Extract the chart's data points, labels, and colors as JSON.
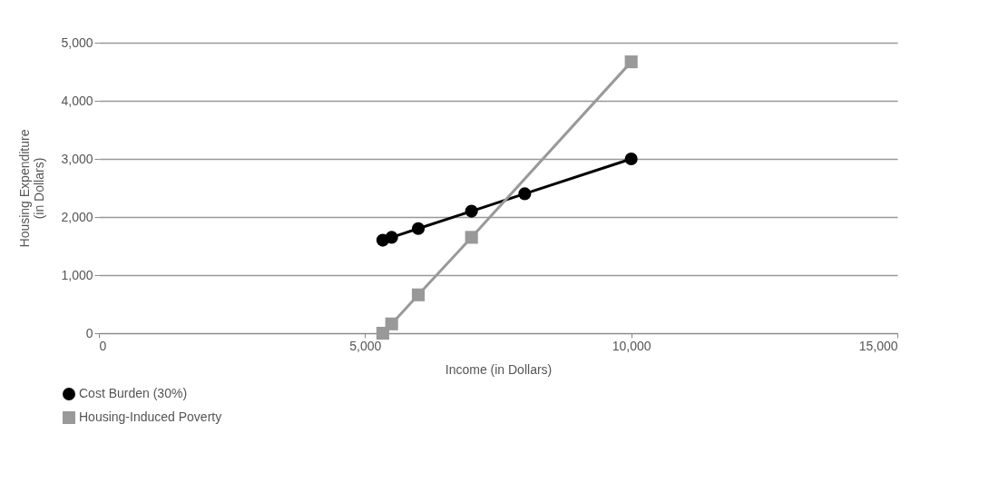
{
  "chart_data": {
    "type": "line",
    "xlabel": "Income (in Dollars)",
    "ylabel": "Housing Expenditure\n(in Dollars)",
    "xlim": [
      0,
      15000
    ],
    "xticks": [
      {
        "value": 0,
        "label": "0"
      },
      {
        "value": 5000,
        "label": "5,000"
      },
      {
        "value": 10000,
        "label": "10,000"
      },
      {
        "value": 15000,
        "label": "15,000"
      }
    ],
    "ylim": [
      0,
      5000
    ],
    "yticks": [
      {
        "value": 0,
        "label": "0"
      },
      {
        "value": 1000,
        "label": "1,000"
      },
      {
        "value": 2000,
        "label": "2,000"
      },
      {
        "value": 3000,
        "label": "3,000"
      },
      {
        "value": 4000,
        "label": "4,000"
      },
      {
        "value": 5000,
        "label": "5,000"
      }
    ],
    "grid": "y",
    "legend": "bottom left",
    "line_style": "solid",
    "series": [
      {
        "name": "Cost Burden (30%)",
        "color": "#000000",
        "marker": "circle",
        "x": [
          5333,
          5500,
          6000,
          7000,
          8000,
          10000
        ],
        "values": [
          1600,
          1650,
          1800,
          2100,
          2400,
          3000
        ]
      },
      {
        "name": "Housing-Induced Poverty",
        "color": "#999999",
        "marker": "square",
        "x": [
          5333,
          5500,
          6000,
          7000,
          10000
        ],
        "values": [
          0,
          160,
          660,
          1650,
          4670
        ]
      }
    ]
  }
}
